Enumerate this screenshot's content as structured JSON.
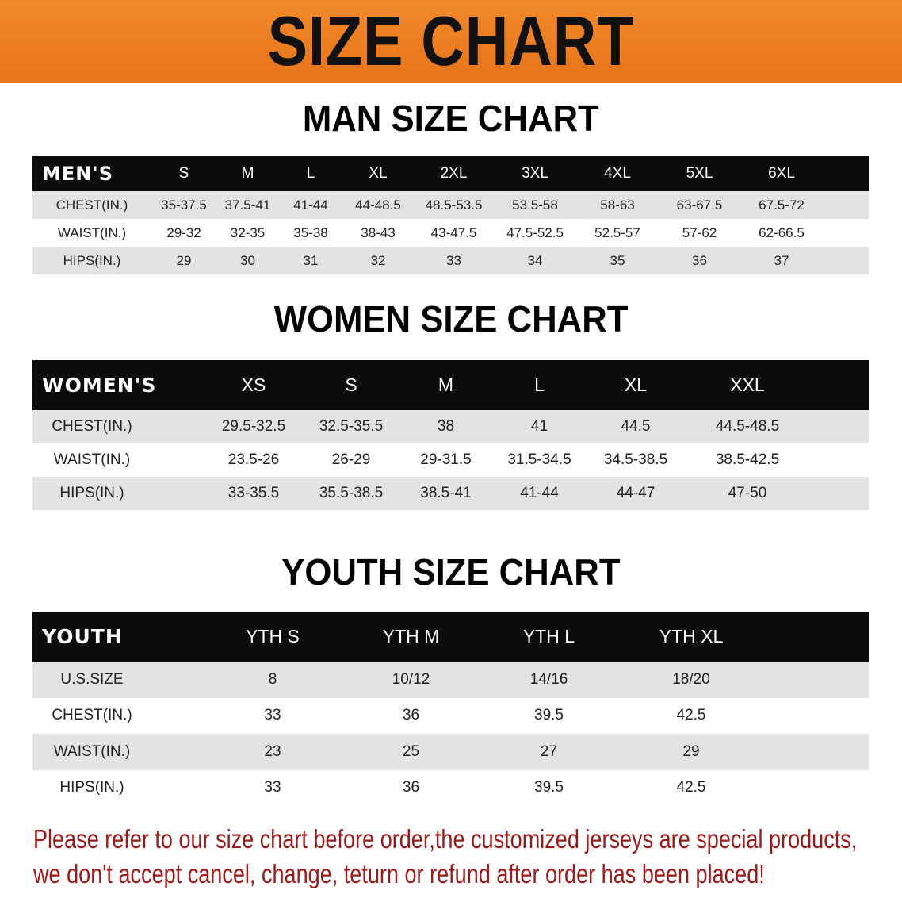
{
  "banner": {
    "title": "SIZE CHART",
    "color": "#ec7f22"
  },
  "men": {
    "title": "MAN SIZE CHART",
    "header": [
      "MEN'S",
      "S",
      "M",
      "L",
      "XL",
      "2XL",
      "3XL",
      "4XL",
      "5XL",
      "6XL"
    ],
    "rows": [
      [
        "CHEST(IN.)",
        "35-37.5",
        "37.5-41",
        "41-44",
        "44-48.5",
        "48.5-53.5",
        "53.5-58",
        "58-63",
        "63-67.5",
        "67.5-72"
      ],
      [
        "WAIST(IN.)",
        "29-32",
        "32-35",
        "35-38",
        "38-43",
        "43-47.5",
        "47.5-52.5",
        "52.5-57",
        "57-62",
        "62-66.5"
      ],
      [
        "HIPS(IN.)",
        "29",
        "30",
        "31",
        "32",
        "33",
        "34",
        "35",
        "36",
        "37"
      ]
    ]
  },
  "women": {
    "title": "WOMEN SIZE CHART",
    "header": [
      "WOMEN'S",
      "XS",
      "S",
      "M",
      "L",
      "XL",
      "XXL"
    ],
    "rows": [
      [
        "CHEST(IN.)",
        "29.5-32.5",
        "32.5-35.5",
        "38",
        "41",
        "44.5",
        "44.5-48.5"
      ],
      [
        "WAIST(IN.)",
        "23.5-26",
        "26-29",
        "29-31.5",
        "31.5-34.5",
        "34.5-38.5",
        "38.5-42.5"
      ],
      [
        "HIPS(IN.)",
        "33-35.5",
        "35.5-38.5",
        "38.5-41",
        "41-44",
        "44-47",
        "47-50"
      ]
    ]
  },
  "youth": {
    "title": "YOUTH SIZE CHART",
    "header": [
      "YOUTH",
      "YTH S",
      "YTH M",
      "YTH L",
      "YTH XL"
    ],
    "rows": [
      [
        "U.S.SIZE",
        "8",
        "10/12",
        "14/16",
        "18/20"
      ],
      [
        "CHEST(IN.)",
        "33",
        "36",
        "39.5",
        "42.5"
      ],
      [
        "WAIST(IN.)",
        "23",
        "25",
        "27",
        "29"
      ],
      [
        "HIPS(IN.)",
        "33",
        "36",
        "39.5",
        "42.5"
      ]
    ]
  },
  "note": {
    "line1": "Please refer to our size chart before order,the customized jerseys are special products,",
    "line2": "we don't accept cancel, change, teturn or refund after order has been placed!",
    "color": "#a01818"
  }
}
